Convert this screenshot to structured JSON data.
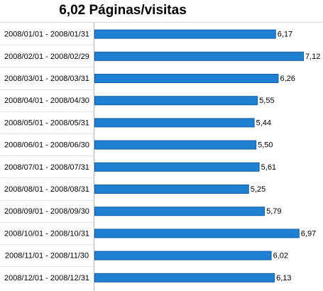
{
  "chart_data": {
    "type": "bar",
    "orientation": "horizontal",
    "title": "6,02 Páginas/visitas",
    "categories": [
      "2008/01/01 - 2008/01/31",
      "2008/02/01 - 2008/02/29",
      "2008/03/01 - 2008/03/31",
      "2008/04/01 - 2008/04/30",
      "2008/05/01 - 2008/05/31",
      "2008/06/01 - 2008/06/30",
      "2008/07/01 - 2008/07/31",
      "2008/08/01 - 2008/08/31",
      "2008/09/01 - 2008/09/30",
      "2008/10/01 - 2008/10/31",
      "2008/11/01 - 2008/11/30",
      "2008/12/01 - 2008/12/31"
    ],
    "values": [
      6.17,
      7.12,
      6.26,
      5.55,
      5.44,
      5.5,
      5.61,
      5.25,
      5.79,
      6.97,
      6.02,
      6.13
    ],
    "value_labels": [
      "6,17",
      "7,12",
      "6,26",
      "5,55",
      "5,44",
      "5,50",
      "5,61",
      "5,25",
      "5,79",
      "6,97",
      "6,02",
      "6,13"
    ],
    "xlim": [
      0,
      7.12
    ],
    "grid": false,
    "bar_color": "#1f7fd1",
    "bar_border_color": "#1260a8"
  }
}
